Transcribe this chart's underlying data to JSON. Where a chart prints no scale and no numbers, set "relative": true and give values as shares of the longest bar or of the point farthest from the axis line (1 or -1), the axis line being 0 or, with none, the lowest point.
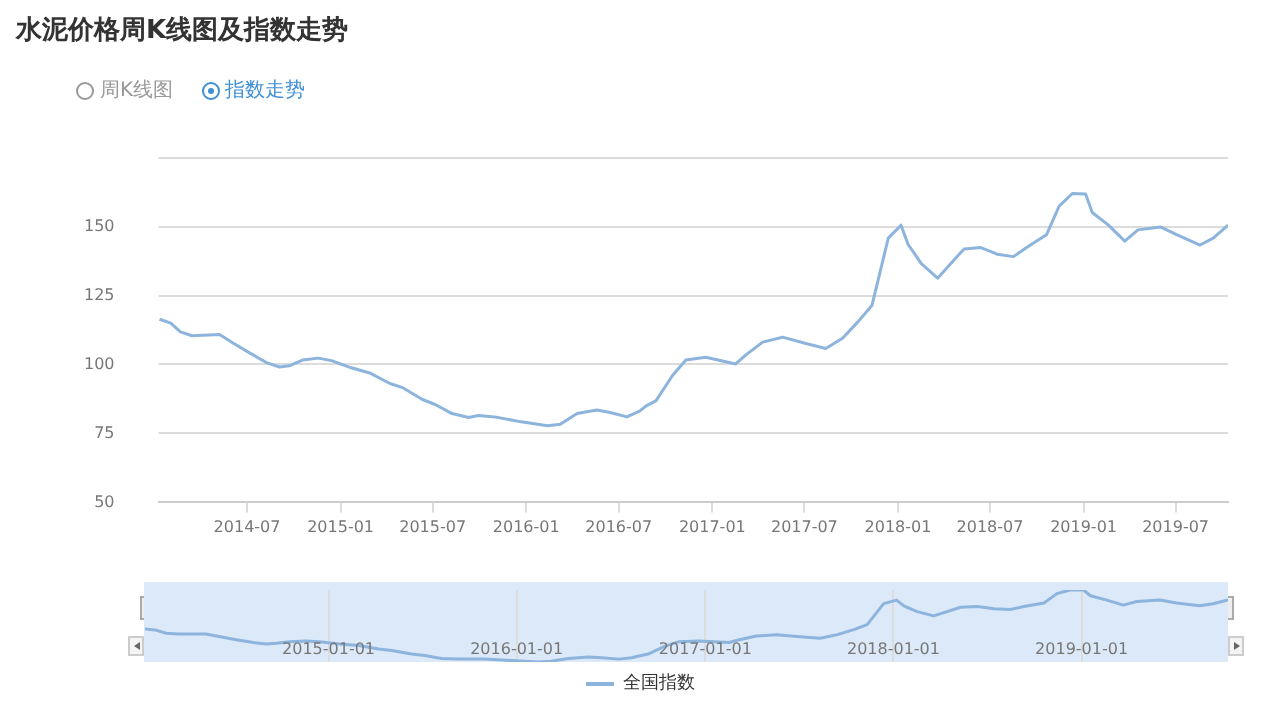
{
  "chart_data": [
    {
      "type": "line",
      "title": "水泥价格周K线图及指数走势",
      "annotations": [
        "周K线图",
        "指数走势"
      ],
      "x": [
        "2014-01-10",
        "2014-02-01",
        "2014-02-20",
        "2014-03-15",
        "2014-05-08",
        "2014-06-05",
        "2014-07-06",
        "2014-08-08",
        "2014-09-03",
        "2014-09-22",
        "2014-10-18",
        "2014-11-18",
        "2014-12-14",
        "2015-01-22",
        "2015-03-01",
        "2015-04-08",
        "2015-05-04",
        "2015-06-11",
        "2015-07-07",
        "2015-08-08",
        "2015-09-10",
        "2015-09-29",
        "2015-10-31",
        "2015-12-22",
        "2016-02-12",
        "2016-03-08",
        "2016-04-10",
        "2016-05-19",
        "2016-06-14",
        "2016-07-17",
        "2016-08-11",
        "2016-08-23",
        "2016-09-12",
        "2016-10-15",
        "2016-11-10",
        "2016-12-19",
        "2017-02-16",
        "2017-03-08",
        "2017-04-10",
        "2017-05-19",
        "2017-07-04",
        "2017-08-12",
        "2017-09-14",
        "2017-10-16",
        "2017-11-11",
        "2017-12-13",
        "2018-01-07",
        "2018-01-21",
        "2018-02-16",
        "2018-03-20",
        "2018-04-15",
        "2018-05-11",
        "2018-06-13",
        "2018-07-15",
        "2018-08-16",
        "2018-09-11",
        "2018-10-20",
        "2018-11-14",
        "2018-12-10",
        "2019-01-05",
        "2019-01-18",
        "2019-02-19",
        "2019-03-23",
        "2019-04-18",
        "2019-06-02",
        "2019-07-04",
        "2019-08-18",
        "2019-09-13",
        "2019-10-12"
      ],
      "series": [
        {
          "name": "全国指数",
          "color": "#8db4dd",
          "values": [
            116.4,
            115,
            111.8,
            110.4,
            110.9,
            107.6,
            104.2,
            100.7,
            99.1,
            99.5,
            101.6,
            102.3,
            101.4,
            98.8,
            96.8,
            93.1,
            91.5,
            87.3,
            85.4,
            82.2,
            80.8,
            81.5,
            81,
            79.2,
            77.8,
            78.3,
            82.2,
            83.5,
            82.6,
            81,
            83.1,
            84.9,
            86.8,
            96.1,
            101.6,
            102.6,
            100.2,
            103.5,
            108.1,
            109.9,
            107.6,
            105.8,
            109.5,
            115.8,
            121.5,
            145.8,
            150.5,
            143.5,
            136.6,
            131.3,
            136.6,
            141.9,
            142.4,
            140,
            139.1,
            142.4,
            147,
            157.4,
            162,
            161.8,
            155.1,
            150.5,
            144.7,
            148.8,
            149.8,
            147,
            143.3,
            145.8,
            150.5
          ]
        }
      ],
      "xlim": [
        "2014-01-08",
        "2019-10-12"
      ],
      "xticks": [
        "2014-07",
        "2015-01",
        "2015-07",
        "2016-01",
        "2016-07",
        "2017-01",
        "2017-07",
        "2018-01",
        "2018-07",
        "2019-01",
        "2019-07"
      ],
      "ylim": [
        50,
        175
      ],
      "yticks": [
        50,
        75,
        100,
        125,
        150,
        {
          "value": 175,
          "label": null
        }
      ],
      "grid": "y",
      "legend": "bottom",
      "marker": "none"
    },
    {
      "type": "line",
      "x": [
        "2014-01-10",
        "2014-02-01",
        "2014-02-20",
        "2014-03-15",
        "2014-05-08",
        "2014-06-05",
        "2014-07-06",
        "2014-08-08",
        "2014-09-03",
        "2014-09-22",
        "2014-10-18",
        "2014-11-18",
        "2014-12-14",
        "2015-01-22",
        "2015-03-01",
        "2015-04-08",
        "2015-05-04",
        "2015-06-11",
        "2015-07-07",
        "2015-08-08",
        "2015-09-10",
        "2015-09-29",
        "2015-10-31",
        "2015-12-22",
        "2016-02-12",
        "2016-03-08",
        "2016-04-10",
        "2016-05-19",
        "2016-06-14",
        "2016-07-17",
        "2016-08-11",
        "2016-08-23",
        "2016-09-12",
        "2016-10-15",
        "2016-11-10",
        "2016-12-19",
        "2017-02-16",
        "2017-03-08",
        "2017-04-10",
        "2017-05-19",
        "2017-07-04",
        "2017-08-12",
        "2017-09-14",
        "2017-10-16",
        "2017-11-11",
        "2017-12-13",
        "2018-01-07",
        "2018-01-21",
        "2018-02-16",
        "2018-03-20",
        "2018-04-15",
        "2018-05-11",
        "2018-06-13",
        "2018-07-15",
        "2018-08-16",
        "2018-09-11",
        "2018-10-20",
        "2018-11-14",
        "2018-12-10",
        "2019-01-05",
        "2019-01-18",
        "2019-02-19",
        "2019-03-23",
        "2019-04-18",
        "2019-06-02",
        "2019-07-04",
        "2019-08-18",
        "2019-09-13",
        "2019-10-12"
      ],
      "series": [
        {
          "color": "#8db4dd",
          "values": [
            0.46,
            0.44,
            0.4,
            0.39,
            0.39,
            0.35,
            0.31,
            0.27,
            0.25,
            0.26,
            0.28,
            0.29,
            0.28,
            0.25,
            0.23,
            0.18,
            0.16,
            0.11,
            0.09,
            0.05,
            0.04,
            0.04,
            0.04,
            0.02,
            0,
            0.01,
            0.05,
            0.07,
            0.06,
            0.04,
            0.06,
            0.08,
            0.11,
            0.22,
            0.28,
            0.29,
            0.27,
            0.31,
            0.36,
            0.38,
            0.35,
            0.33,
            0.38,
            0.45,
            0.52,
            0.81,
            0.86,
            0.78,
            0.7,
            0.64,
            0.7,
            0.76,
            0.77,
            0.74,
            0.73,
            0.77,
            0.82,
            0.95,
            1,
            1,
            0.92,
            0.86,
            0.79,
            0.84,
            0.86,
            0.82,
            0.78,
            0.81,
            0.86
          ]
        }
      ],
      "xlim": [
        "2014-01-08",
        "2019-10-12"
      ],
      "xticks": [
        "2015-01-01",
        "2016-01-01",
        "2017-01-01",
        "2018-01-01",
        "2019-01-01"
      ],
      "relative": true,
      "tick_labels": "x",
      "grid": "x",
      "marker": "none"
    }
  ]
}
